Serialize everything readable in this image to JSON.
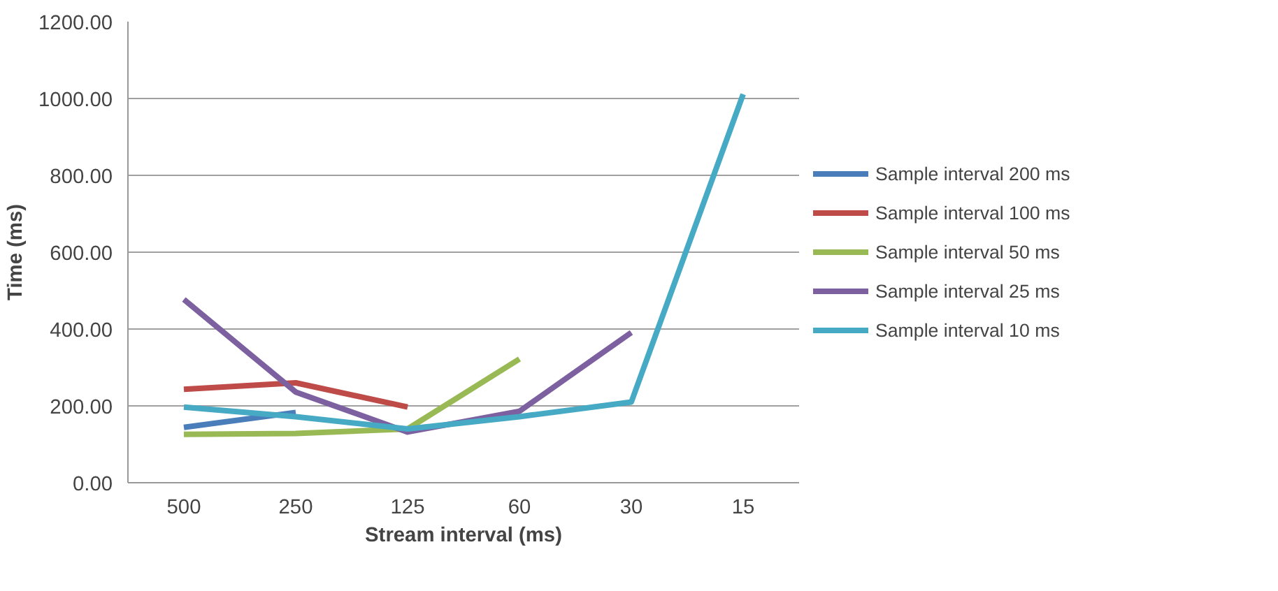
{
  "chart_data": {
    "type": "line",
    "xlabel": "Stream interval (ms)",
    "ylabel": "Time (ms)",
    "categories": [
      "500",
      "250",
      "125",
      "60",
      "30",
      "15"
    ],
    "ylim": [
      0,
      1200
    ],
    "yticks": [
      {
        "value": 0,
        "label": "0.00"
      },
      {
        "value": 200,
        "label": "200.00"
      },
      {
        "value": 400,
        "label": "400.00"
      },
      {
        "value": 600,
        "label": "600.00"
      },
      {
        "value": 800,
        "label": "800.00"
      },
      {
        "value": 1000,
        "label": "1000.00"
      },
      {
        "value": 1200,
        "label": "1200.00"
      }
    ],
    "grid": "y",
    "legend": "right",
    "marker": "none",
    "series": [
      {
        "name": "Sample interval 200 ms",
        "color": "#4a7ebb",
        "values": [
          144,
          183,
          null,
          null,
          null,
          null
        ]
      },
      {
        "name": "Sample interval 100 ms",
        "color": "#be4b48",
        "values": [
          243,
          260,
          197,
          null,
          null,
          null
        ]
      },
      {
        "name": "Sample interval 50 ms",
        "color": "#98b954",
        "values": [
          126,
          128,
          140,
          322,
          null,
          null
        ]
      },
      {
        "name": "Sample interval 25 ms",
        "color": "#7d60a0",
        "values": [
          477,
          236,
          132,
          186,
          391,
          null
        ]
      },
      {
        "name": "Sample interval 10 ms",
        "color": "#46aac5",
        "values": [
          197,
          172,
          140,
          172,
          210,
          1011
        ]
      }
    ]
  }
}
